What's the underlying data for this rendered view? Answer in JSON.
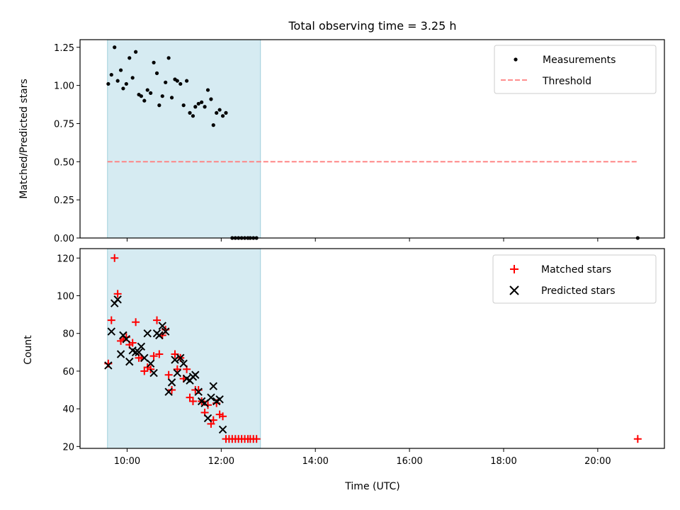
{
  "chart_data": [
    {
      "type": "scatter",
      "title": "Total observing time = 3.25 h",
      "xlabel": "",
      "ylabel": "Matched/Predicted stars",
      "xlim": [
        "09:00",
        "21:25"
      ],
      "ylim": [
        0,
        1.3
      ],
      "yticks": [
        0.0,
        0.25,
        0.5,
        0.75,
        1.0,
        1.25
      ],
      "ytick_labels": [
        "0.00",
        "0.25",
        "0.50",
        "0.75",
        "1.00",
        "1.25"
      ],
      "xticks": [
        "10:00",
        "12:00",
        "14:00",
        "16:00",
        "18:00",
        "20:00"
      ],
      "shaded_span": [
        "09:35",
        "12:50"
      ],
      "legend": {
        "position": "top-right",
        "entries": [
          "Measurements",
          "Threshold"
        ]
      },
      "series": [
        {
          "name": "Measurements",
          "marker": "dot",
          "color": "#000000",
          "points": [
            [
              "09:36",
              1.01
            ],
            [
              "09:40",
              1.07
            ],
            [
              "09:44",
              1.25
            ],
            [
              "09:48",
              1.03
            ],
            [
              "09:52",
              1.1
            ],
            [
              "09:55",
              0.98
            ],
            [
              "09:59",
              1.01
            ],
            [
              "10:03",
              1.18
            ],
            [
              "10:07",
              1.05
            ],
            [
              "10:11",
              1.22
            ],
            [
              "10:15",
              0.94
            ],
            [
              "10:18",
              0.93
            ],
            [
              "10:22",
              0.9
            ],
            [
              "10:26",
              0.97
            ],
            [
              "10:30",
              0.95
            ],
            [
              "10:34",
              1.15
            ],
            [
              "10:38",
              1.08
            ],
            [
              "10:41",
              0.87
            ],
            [
              "10:45",
              0.93
            ],
            [
              "10:49",
              1.02
            ],
            [
              "10:53",
              1.18
            ],
            [
              "10:57",
              0.92
            ],
            [
              "11:01",
              1.04
            ],
            [
              "11:04",
              1.03
            ],
            [
              "11:08",
              1.01
            ],
            [
              "11:12",
              0.87
            ],
            [
              "11:16",
              1.03
            ],
            [
              "11:20",
              0.82
            ],
            [
              "11:24",
              0.8
            ],
            [
              "11:27",
              0.86
            ],
            [
              "11:31",
              0.88
            ],
            [
              "11:35",
              0.89
            ],
            [
              "11:39",
              0.86
            ],
            [
              "11:43",
              0.97
            ],
            [
              "11:47",
              0.91
            ],
            [
              "11:50",
              0.74
            ],
            [
              "11:54",
              0.82
            ],
            [
              "11:58",
              0.84
            ],
            [
              "12:02",
              0.8
            ],
            [
              "12:06",
              0.82
            ],
            [
              "12:14",
              0.0
            ],
            [
              "12:18",
              0.0
            ],
            [
              "12:22",
              0.0
            ],
            [
              "12:26",
              0.0
            ],
            [
              "12:30",
              0.0
            ],
            [
              "12:34",
              0.0
            ],
            [
              "12:37",
              0.0
            ],
            [
              "12:41",
              0.0
            ],
            [
              "12:45",
              0.0
            ],
            [
              "20:51",
              0.0
            ]
          ]
        },
        {
          "name": "Threshold",
          "marker": "dashed-line",
          "color": "#ff7f7f",
          "x": [
            "09:35",
            "20:51"
          ],
          "y": [
            0.5,
            0.5
          ]
        }
      ]
    },
    {
      "type": "scatter",
      "title": "",
      "xlabel": "Time (UTC)",
      "ylabel": "Count",
      "xlim": [
        "09:00",
        "21:25"
      ],
      "ylim": [
        19,
        125
      ],
      "yticks": [
        20,
        40,
        60,
        80,
        100,
        120
      ],
      "ytick_labels": [
        "20",
        "40",
        "60",
        "80",
        "100",
        "120"
      ],
      "xticks": [
        "10:00",
        "12:00",
        "14:00",
        "16:00",
        "18:00",
        "20:00"
      ],
      "xtick_labels": [
        "10:00",
        "12:00",
        "14:00",
        "16:00",
        "18:00",
        "20:00"
      ],
      "shaded_span": [
        "09:35",
        "12:50"
      ],
      "legend": {
        "position": "top-right",
        "entries": [
          "Matched stars",
          "Predicted stars"
        ]
      },
      "series": [
        {
          "name": "Matched stars",
          "marker": "plus",
          "color": "#ff0000",
          "points": [
            [
              "09:36",
              64
            ],
            [
              "09:40",
              87
            ],
            [
              "09:44",
              120
            ],
            [
              "09:48",
              101
            ],
            [
              "09:52",
              76
            ],
            [
              "09:55",
              77
            ],
            [
              "09:59",
              78
            ],
            [
              "10:03",
              74
            ],
            [
              "10:07",
              75
            ],
            [
              "10:11",
              86
            ],
            [
              "10:15",
              67
            ],
            [
              "10:18",
              67
            ],
            [
              "10:22",
              60
            ],
            [
              "10:26",
              62
            ],
            [
              "10:30",
              61
            ],
            [
              "10:34",
              68
            ],
            [
              "10:38",
              87
            ],
            [
              "10:41",
              69
            ],
            [
              "10:45",
              79
            ],
            [
              "10:49",
              82
            ],
            [
              "10:53",
              58
            ],
            [
              "10:57",
              50
            ],
            [
              "11:01",
              69
            ],
            [
              "11:04",
              61
            ],
            [
              "11:08",
              67
            ],
            [
              "11:12",
              56
            ],
            [
              "11:16",
              61
            ],
            [
              "11:20",
              46
            ],
            [
              "11:24",
              44
            ],
            [
              "11:27",
              50
            ],
            [
              "11:31",
              50
            ],
            [
              "11:35",
              44
            ],
            [
              "11:39",
              38
            ],
            [
              "11:43",
              42
            ],
            [
              "11:47",
              32
            ],
            [
              "11:50",
              34
            ],
            [
              "11:54",
              43
            ],
            [
              "11:58",
              37
            ],
            [
              "12:02",
              36
            ],
            [
              "12:06",
              24
            ],
            [
              "12:10",
              24
            ],
            [
              "12:14",
              24
            ],
            [
              "12:18",
              24
            ],
            [
              "12:22",
              24
            ],
            [
              "12:26",
              24
            ],
            [
              "12:30",
              24
            ],
            [
              "12:34",
              24
            ],
            [
              "12:37",
              24
            ],
            [
              "12:41",
              24
            ],
            [
              "12:45",
              24
            ],
            [
              "20:51",
              24
            ]
          ]
        },
        {
          "name": "Predicted stars",
          "marker": "x",
          "color": "#000000",
          "points": [
            [
              "09:36",
              63
            ],
            [
              "09:40",
              81
            ],
            [
              "09:44",
              96
            ],
            [
              "09:48",
              98
            ],
            [
              "09:52",
              69
            ],
            [
              "09:55",
              79
            ],
            [
              "09:59",
              77
            ],
            [
              "10:03",
              65
            ],
            [
              "10:07",
              71
            ],
            [
              "10:11",
              70
            ],
            [
              "10:15",
              70
            ],
            [
              "10:18",
              73
            ],
            [
              "10:22",
              67
            ],
            [
              "10:26",
              80
            ],
            [
              "10:30",
              64
            ],
            [
              "10:34",
              59
            ],
            [
              "10:38",
              80
            ],
            [
              "10:41",
              79
            ],
            [
              "10:45",
              84
            ],
            [
              "10:49",
              81
            ],
            [
              "10:53",
              49
            ],
            [
              "10:57",
              54
            ],
            [
              "11:01",
              66
            ],
            [
              "11:04",
              59
            ],
            [
              "11:08",
              67
            ],
            [
              "11:12",
              64
            ],
            [
              "11:16",
              56
            ],
            [
              "11:20",
              55
            ],
            [
              "11:24",
              57
            ],
            [
              "11:27",
              58
            ],
            [
              "11:31",
              49
            ],
            [
              "11:35",
              44
            ],
            [
              "11:39",
              43
            ],
            [
              "11:43",
              35
            ],
            [
              "11:47",
              46
            ],
            [
              "11:50",
              52
            ],
            [
              "11:54",
              44
            ],
            [
              "11:58",
              45
            ],
            [
              "12:02",
              29
            ]
          ]
        }
      ]
    }
  ]
}
